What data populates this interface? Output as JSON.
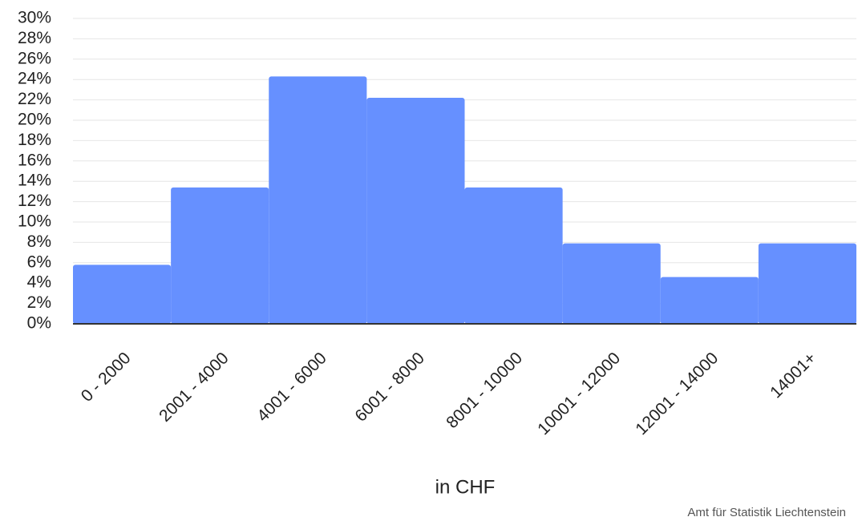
{
  "chart_data": {
    "type": "bar",
    "x_label": "in CHF",
    "source": "Amt für Statistik Liechtenstein",
    "categories": [
      "0 - 2000",
      "2001 - 4000",
      "4001 - 6000",
      "6001 - 8000",
      "8001 - 10000",
      "10001 - 12000",
      "12001 - 14000",
      "14001+"
    ],
    "values": [
      5.8,
      13.4,
      24.3,
      22.2,
      13.4,
      7.9,
      4.6,
      7.9
    ],
    "color": "#6690ff",
    "ylim": [
      0,
      30
    ],
    "yticks": [
      {
        "value": 0,
        "label": "0%"
      },
      {
        "value": 2,
        "label": "2%"
      },
      {
        "value": 4,
        "label": "4%"
      },
      {
        "value": 6,
        "label": "6%"
      },
      {
        "value": 8,
        "label": "8%"
      },
      {
        "value": 10,
        "label": "10%"
      },
      {
        "value": 12,
        "label": "12%"
      },
      {
        "value": 14,
        "label": "14%"
      },
      {
        "value": 16,
        "label": "16%"
      },
      {
        "value": 18,
        "label": "18%"
      },
      {
        "value": 20,
        "label": "20%"
      },
      {
        "value": 22,
        "label": "22%"
      },
      {
        "value": 24,
        "label": "24%"
      },
      {
        "value": 26,
        "label": "26%"
      },
      {
        "value": 28,
        "label": "28%"
      },
      {
        "value": 30,
        "label": "30%"
      }
    ],
    "grid": true
  }
}
